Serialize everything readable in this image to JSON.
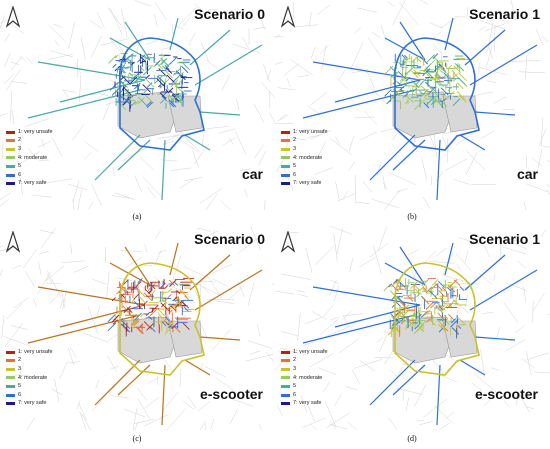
{
  "panels": [
    {
      "caption": "(a)",
      "scenario": "Scenario 0",
      "mode": "car",
      "scheme": "car0"
    },
    {
      "caption": "(b)",
      "scenario": "Scenario 1",
      "mode": "car",
      "scheme": "car1"
    },
    {
      "caption": "(c)",
      "scenario": "Scenario 0",
      "mode": "e-scooter",
      "scheme": "sc0"
    },
    {
      "caption": "(d)",
      "scenario": "Scenario 1",
      "mode": "e-scooter",
      "scheme": "sc1"
    }
  ],
  "legend": [
    {
      "label": "1: very unsafe",
      "color": "#b02418"
    },
    {
      "label": "2",
      "color": "#e8703a"
    },
    {
      "label": "3",
      "color": "#c9c22a"
    },
    {
      "label": "4: moderate",
      "color": "#8fce5a"
    },
    {
      "label": "5",
      "color": "#4aa9a2"
    },
    {
      "label": "6",
      "color": "#2e6fd6"
    },
    {
      "label": "7: very safe",
      "color": "#1a1a8c"
    }
  ]
}
